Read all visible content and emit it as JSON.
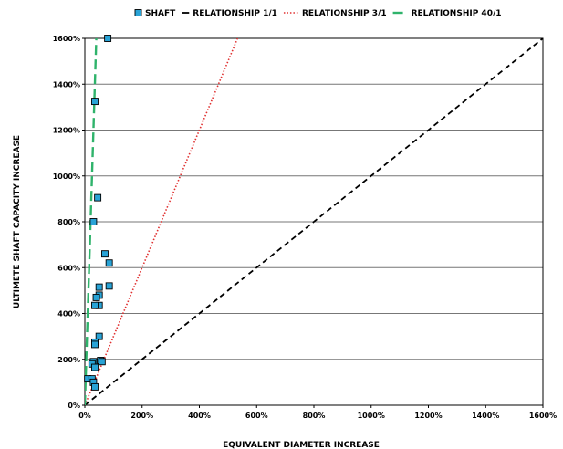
{
  "chart_data": {
    "type": "scatter",
    "title": "",
    "xlabel": "EQUIVALENT DIAMETER INCREASE",
    "ylabel": "ULTIMETE SHAFT CAPACITY INCREASE",
    "xlim": [
      0,
      1600
    ],
    "ylim": [
      0,
      1600
    ],
    "x_unit": "%",
    "y_unit": "%",
    "xticks": [
      "0%",
      "200%",
      "400%",
      "600%",
      "800%",
      "1000%",
      "1200%",
      "1400%",
      "1600%"
    ],
    "yticks": [
      "0%",
      "200%",
      "400%",
      "600%",
      "800%",
      "1000%",
      "1200%",
      "1400%",
      "1600%"
    ],
    "grid": "horizontal",
    "legend_position": "top",
    "legend": [
      "SHAFT",
      "RELATIONSHIP 1/1",
      "RELATIONSHIP 3/1",
      "RELATIONSHIP 40/1"
    ],
    "series": [
      {
        "name": "SHAFT",
        "kind": "marker",
        "color": "#29a3d6",
        "points": [
          [
            80,
            1600
          ],
          [
            35,
            1325
          ],
          [
            45,
            905
          ],
          [
            30,
            800
          ],
          [
            70,
            660
          ],
          [
            85,
            620
          ],
          [
            85,
            520
          ],
          [
            50,
            515
          ],
          [
            50,
            480
          ],
          [
            40,
            470
          ],
          [
            50,
            435
          ],
          [
            35,
            435
          ],
          [
            50,
            300
          ],
          [
            35,
            275
          ],
          [
            35,
            265
          ],
          [
            55,
            195
          ],
          [
            60,
            190
          ],
          [
            30,
            190
          ],
          [
            25,
            180
          ],
          [
            35,
            165
          ],
          [
            10,
            115
          ],
          [
            25,
            115
          ],
          [
            30,
            100
          ],
          [
            35,
            80
          ]
        ]
      },
      {
        "name": "RELATIONSHIP 1/1",
        "kind": "line",
        "style": "dashed",
        "color": "#000000",
        "slope": 1
      },
      {
        "name": "RELATIONSHIP 3/1",
        "kind": "line",
        "style": "dotted",
        "color": "#e03030",
        "slope": 3
      },
      {
        "name": "RELATIONSHIP 40/1",
        "kind": "line",
        "style": "long-dashed",
        "color": "#2fb36b",
        "slope": 40
      }
    ]
  }
}
